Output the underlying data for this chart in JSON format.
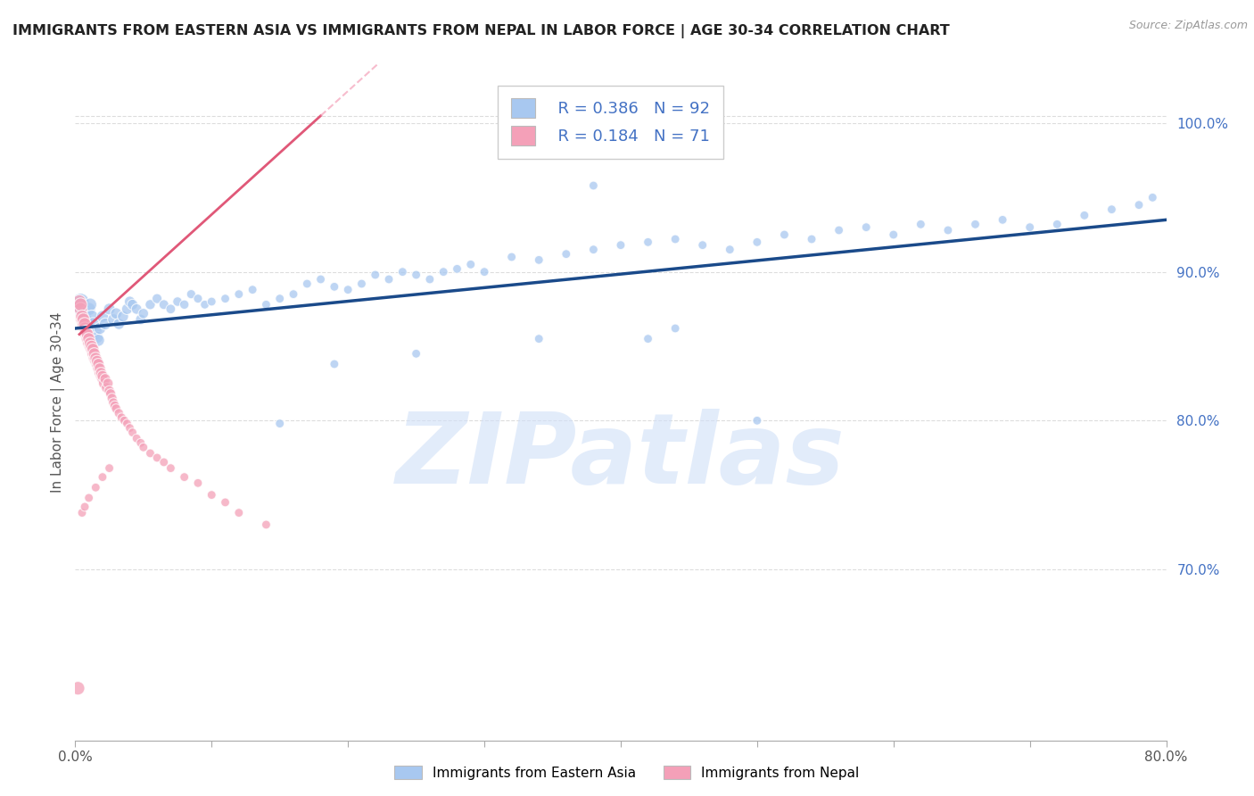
{
  "title": "IMMIGRANTS FROM EASTERN ASIA VS IMMIGRANTS FROM NEPAL IN LABOR FORCE | AGE 30-34 CORRELATION CHART",
  "source": "Source: ZipAtlas.com",
  "ylabel": "In Labor Force | Age 30-34",
  "xlim": [
    0.0,
    0.8
  ],
  "ylim": [
    0.585,
    1.04
  ],
  "ytick_right_labels": [
    "70.0%",
    "80.0%",
    "90.0%",
    "100.0%"
  ],
  "ytick_right_values": [
    0.7,
    0.8,
    0.9,
    1.0
  ],
  "R_blue": 0.386,
  "N_blue": 92,
  "R_pink": 0.184,
  "N_pink": 71,
  "blue_color": "#A8C8F0",
  "blue_line_color": "#1A4A8A",
  "pink_color": "#F4A0B8",
  "pink_line_color": "#E05878",
  "pink_dash_color": "#F4A0B8",
  "watermark": "ZIPatlas",
  "watermark_color": "#D0E0F8",
  "legend_label_blue": "Immigrants from Eastern Asia",
  "legend_label_pink": "Immigrants from Nepal",
  "background_color": "#FFFFFF",
  "grid_color": "#DDDDDD",
  "title_color": "#222222",
  "blue_scatter_x": [
    0.003,
    0.004,
    0.005,
    0.006,
    0.007,
    0.008,
    0.009,
    0.01,
    0.011,
    0.012,
    0.013,
    0.014,
    0.015,
    0.016,
    0.017,
    0.018,
    0.02,
    0.022,
    0.025,
    0.028,
    0.03,
    0.032,
    0.035,
    0.038,
    0.04,
    0.042,
    0.045,
    0.048,
    0.05,
    0.055,
    0.06,
    0.065,
    0.07,
    0.075,
    0.08,
    0.085,
    0.09,
    0.095,
    0.1,
    0.11,
    0.12,
    0.13,
    0.14,
    0.15,
    0.16,
    0.17,
    0.18,
    0.19,
    0.2,
    0.21,
    0.22,
    0.23,
    0.24,
    0.25,
    0.26,
    0.27,
    0.28,
    0.29,
    0.3,
    0.32,
    0.34,
    0.36,
    0.38,
    0.4,
    0.42,
    0.44,
    0.46,
    0.48,
    0.5,
    0.52,
    0.54,
    0.56,
    0.58,
    0.6,
    0.62,
    0.64,
    0.66,
    0.68,
    0.7,
    0.72,
    0.74,
    0.76,
    0.78,
    0.79,
    0.5,
    0.38,
    0.42,
    0.19,
    0.25,
    0.15,
    0.34,
    0.44
  ],
  "blue_scatter_y": [
    0.876,
    0.88,
    0.874,
    0.872,
    0.868,
    0.865,
    0.862,
    0.875,
    0.878,
    0.87,
    0.865,
    0.858,
    0.86,
    0.856,
    0.854,
    0.862,
    0.87,
    0.865,
    0.875,
    0.868,
    0.872,
    0.865,
    0.87,
    0.875,
    0.88,
    0.878,
    0.875,
    0.868,
    0.872,
    0.878,
    0.882,
    0.878,
    0.875,
    0.88,
    0.878,
    0.885,
    0.882,
    0.878,
    0.88,
    0.882,
    0.885,
    0.888,
    0.878,
    0.882,
    0.885,
    0.892,
    0.895,
    0.89,
    0.888,
    0.892,
    0.898,
    0.895,
    0.9,
    0.898,
    0.895,
    0.9,
    0.902,
    0.905,
    0.9,
    0.91,
    0.908,
    0.912,
    0.915,
    0.918,
    0.92,
    0.922,
    0.918,
    0.915,
    0.92,
    0.925,
    0.922,
    0.928,
    0.93,
    0.925,
    0.932,
    0.928,
    0.932,
    0.935,
    0.93,
    0.932,
    0.938,
    0.942,
    0.945,
    0.95,
    0.8,
    0.958,
    0.855,
    0.838,
    0.845,
    0.798,
    0.855,
    0.862
  ],
  "blue_scatter_size": [
    200,
    180,
    160,
    150,
    140,
    130,
    120,
    115,
    110,
    108,
    105,
    102,
    100,
    98,
    96,
    94,
    92,
    90,
    88,
    86,
    84,
    82,
    80,
    78,
    76,
    74,
    72,
    70,
    68,
    66,
    64,
    62,
    60,
    58,
    56,
    54,
    52,
    50,
    50,
    50,
    50,
    50,
    50,
    50,
    50,
    50,
    50,
    50,
    50,
    50,
    50,
    50,
    50,
    50,
    50,
    50,
    50,
    50,
    50,
    50,
    50,
    50,
    50,
    50,
    50,
    50,
    50,
    50,
    50,
    50,
    50,
    50,
    50,
    50,
    50,
    50,
    50,
    50,
    50,
    50,
    50,
    50,
    50,
    50,
    50,
    50,
    50,
    50,
    50,
    50,
    50,
    50
  ],
  "pink_scatter_x": [
    0.002,
    0.003,
    0.004,
    0.004,
    0.005,
    0.005,
    0.006,
    0.006,
    0.007,
    0.007,
    0.008,
    0.008,
    0.009,
    0.009,
    0.01,
    0.01,
    0.011,
    0.011,
    0.012,
    0.012,
    0.013,
    0.013,
    0.014,
    0.014,
    0.015,
    0.015,
    0.016,
    0.016,
    0.017,
    0.017,
    0.018,
    0.018,
    0.019,
    0.019,
    0.02,
    0.02,
    0.021,
    0.022,
    0.023,
    0.024,
    0.025,
    0.026,
    0.027,
    0.028,
    0.029,
    0.03,
    0.032,
    0.034,
    0.036,
    0.038,
    0.04,
    0.042,
    0.045,
    0.048,
    0.05,
    0.055,
    0.06,
    0.065,
    0.07,
    0.08,
    0.09,
    0.1,
    0.11,
    0.12,
    0.14,
    0.005,
    0.007,
    0.01,
    0.015,
    0.02,
    0.025
  ],
  "pink_scatter_y": [
    0.62,
    0.88,
    0.875,
    0.878,
    0.868,
    0.87,
    0.865,
    0.868,
    0.862,
    0.865,
    0.858,
    0.86,
    0.855,
    0.858,
    0.852,
    0.855,
    0.85,
    0.852,
    0.848,
    0.85,
    0.845,
    0.848,
    0.842,
    0.845,
    0.84,
    0.842,
    0.838,
    0.84,
    0.835,
    0.838,
    0.832,
    0.835,
    0.83,
    0.832,
    0.828,
    0.83,
    0.825,
    0.828,
    0.822,
    0.825,
    0.82,
    0.818,
    0.815,
    0.812,
    0.81,
    0.808,
    0.805,
    0.802,
    0.8,
    0.798,
    0.795,
    0.792,
    0.788,
    0.785,
    0.782,
    0.778,
    0.775,
    0.772,
    0.768,
    0.762,
    0.758,
    0.75,
    0.745,
    0.738,
    0.73,
    0.738,
    0.742,
    0.748,
    0.755,
    0.762,
    0.768
  ],
  "pink_scatter_size": [
    120,
    120,
    115,
    115,
    110,
    110,
    108,
    108,
    105,
    105,
    102,
    102,
    100,
    100,
    98,
    98,
    96,
    96,
    94,
    94,
    92,
    92,
    90,
    90,
    88,
    88,
    86,
    86,
    84,
    84,
    82,
    82,
    80,
    80,
    78,
    78,
    76,
    74,
    72,
    70,
    68,
    66,
    64,
    62,
    60,
    58,
    56,
    54,
    52,
    50,
    50,
    50,
    50,
    50,
    50,
    50,
    50,
    50,
    50,
    50,
    50,
    50,
    50,
    50,
    50,
    50,
    50,
    50,
    50,
    50,
    50
  ]
}
